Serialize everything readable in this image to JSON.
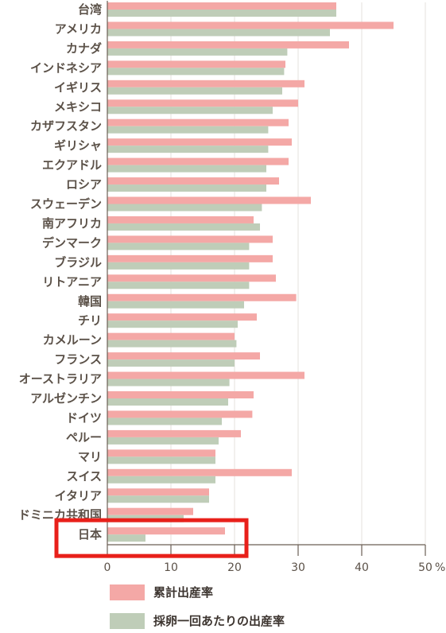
{
  "chart_data": {
    "type": "bar",
    "orientation": "horizontal",
    "categories": [
      "台湾",
      "アメリカ",
      "カナダ",
      "インドネシア",
      "イギリス",
      "メキシコ",
      "カザフスタン",
      "ギリシャ",
      "エクアドル",
      "ロシア",
      "スウェーデン",
      "南アフリカ",
      "デンマーク",
      "ブラジル",
      "リトアニア",
      "韓国",
      "チリ",
      "カメルーン",
      "フランス",
      "オーストラリア",
      "アルゼンチン",
      "ドイツ",
      "ペルー",
      "マリ",
      "スイス",
      "イタリア",
      "ドミニカ共和国",
      "日本"
    ],
    "series": [
      {
        "name": "累計出産率",
        "color": "#f4a8a6",
        "values": [
          36,
          45,
          38,
          28,
          31,
          30,
          28.5,
          29,
          28.5,
          27,
          32,
          23,
          26,
          26,
          26.5,
          29.7,
          23.5,
          20,
          24,
          31,
          23,
          22.8,
          21,
          17,
          29,
          16,
          13.5,
          18.5
        ]
      },
      {
        "name": "採卵一回あたりの出産率",
        "color": "#bfcdb8",
        "values": [
          36,
          35,
          28.3,
          27.8,
          27.5,
          26,
          25.3,
          25.3,
          25,
          25,
          24.3,
          24,
          22.3,
          22.3,
          22.3,
          21.5,
          20.5,
          20.3,
          20,
          19.2,
          19,
          18,
          17.5,
          17,
          17,
          16,
          12,
          6
        ]
      }
    ],
    "xlim": [
      0,
      50
    ],
    "xticks": [
      "0",
      "10",
      "20",
      "30",
      "40",
      "50"
    ],
    "xtick_unit": "%",
    "legend_position": "bottom-left",
    "highlight": {
      "category": "日本",
      "color": "#e8201a"
    }
  }
}
